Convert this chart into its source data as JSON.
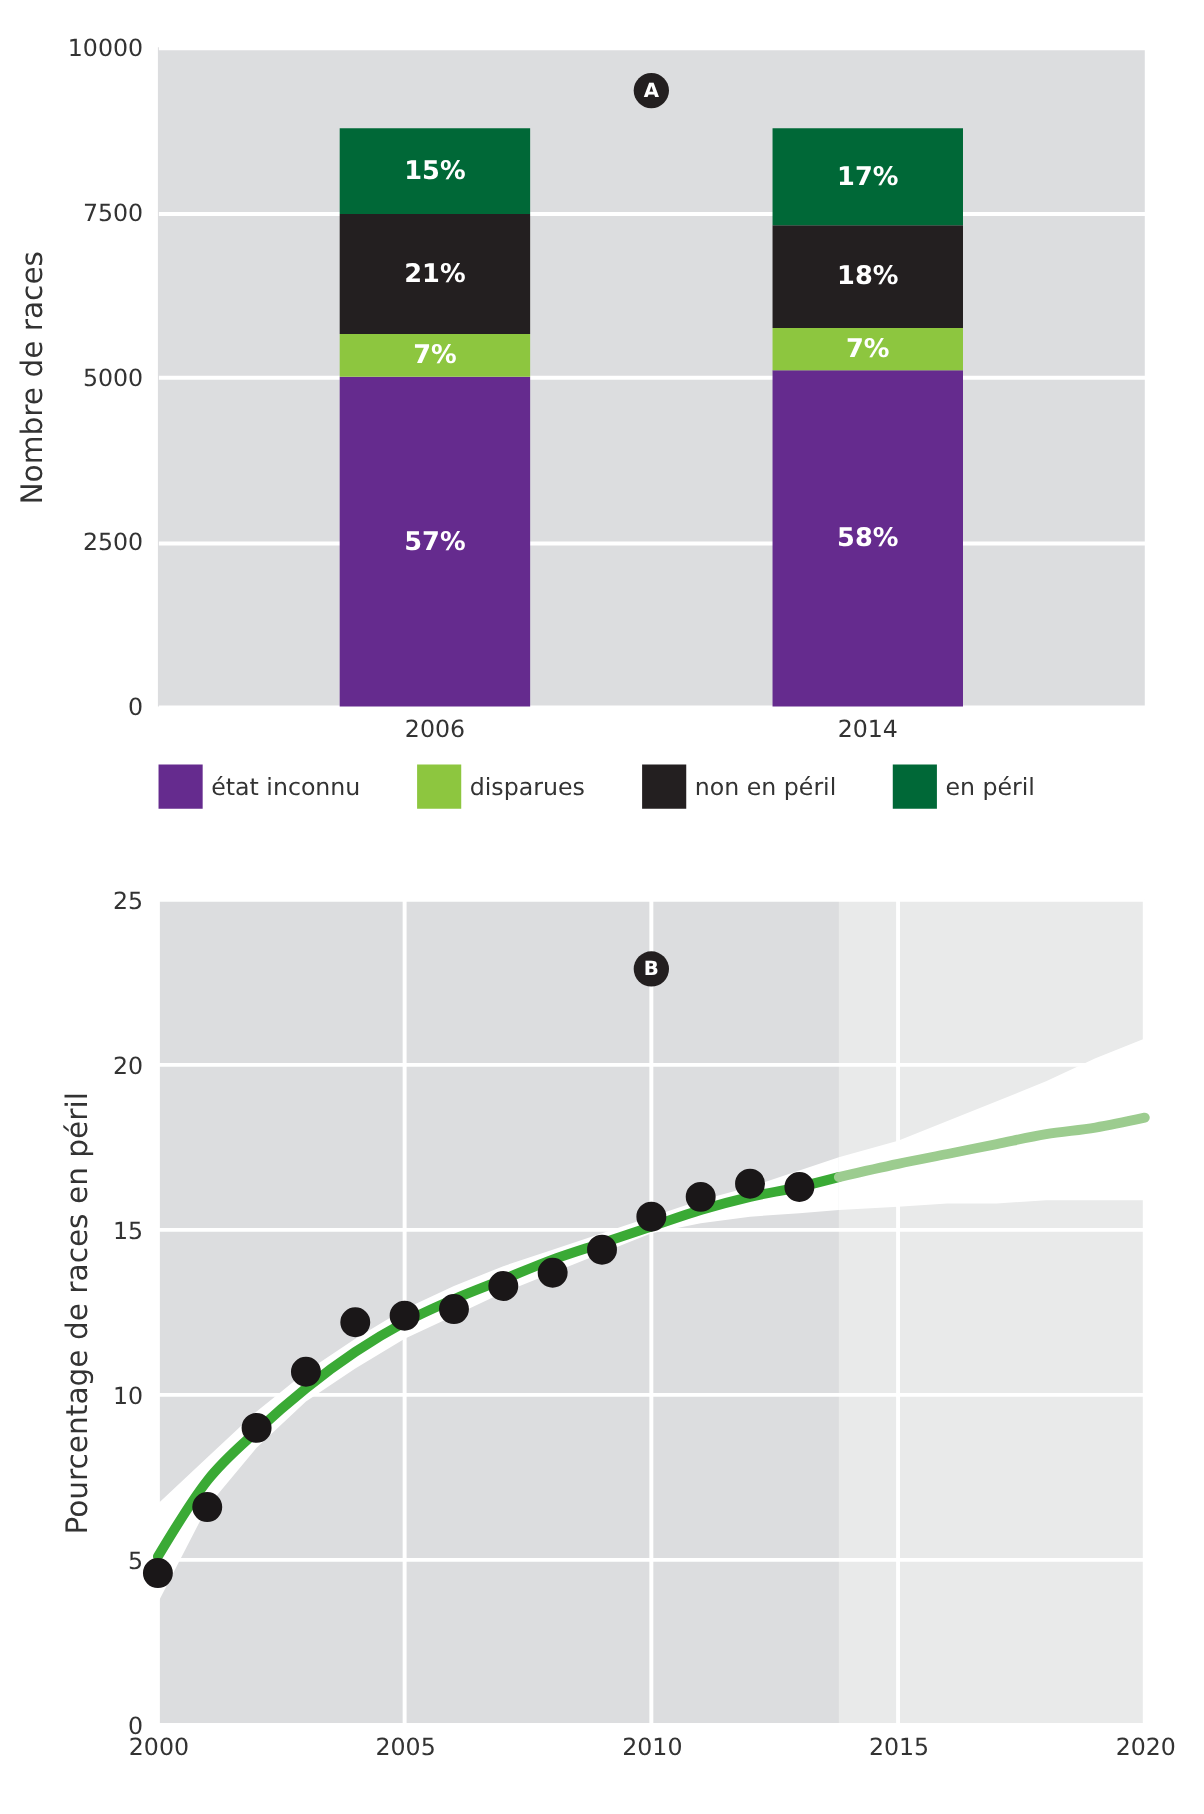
{
  "chart_data": [
    {
      "type": "bar",
      "stacked": true,
      "annotations": [
        "A",
        "57%",
        "7%",
        "21%",
        "15%",
        "58%",
        "7%",
        "18%",
        "17%"
      ],
      "ylabel": "Nombre de races",
      "categories": [
        "2006",
        "2014"
      ],
      "ylim": [
        0,
        10000
      ],
      "yticks": [
        0,
        2500,
        5000,
        7500,
        10000
      ],
      "grid": "y",
      "legend": "bottom",
      "series": [
        {
          "name": "état inconnu",
          "color": "#652b8e",
          "values": [
            5000,
            5100
          ]
        },
        {
          "name": "disparues",
          "color": "#8dc63f",
          "values": [
            650,
            640
          ]
        },
        {
          "name": "non en péril",
          "color": "#231f20",
          "values": [
            1820,
            1560
          ]
        },
        {
          "name": "en péril",
          "color": "#006837",
          "values": [
            1300,
            1470
          ]
        }
      ]
    },
    {
      "type": "line",
      "annotations": [
        "B"
      ],
      "ylabel": "Pourcentage de races en péril",
      "xlim": [
        2000,
        2020
      ],
      "xticks": [
        2000,
        2005,
        2010,
        2015,
        2020
      ],
      "ylim": [
        0,
        25
      ],
      "yticks": [
        0,
        5,
        10,
        15,
        20,
        25
      ],
      "grid": true,
      "legend": false,
      "bands": [
        {
          "axis": "x",
          "from": 2013.8,
          "to": 2020,
          "color": "#e9eaea"
        }
      ],
      "series": [
        {
          "type": "line",
          "color": "#3aaa35",
          "x": [
            2000,
            2001,
            2002,
            2003,
            2004,
            2005,
            2006,
            2007,
            2008,
            2009,
            2010,
            2011,
            2012,
            2013,
            2013.8
          ],
          "values": [
            5.1,
            7.4,
            8.9,
            10.2,
            11.3,
            12.2,
            12.9,
            13.5,
            14.1,
            14.6,
            15.1,
            15.6,
            16.0,
            16.3,
            16.6
          ],
          "lower": [
            3.7,
            6.6,
            8.4,
            9.8,
            10.8,
            11.7,
            12.4,
            13.1,
            13.7,
            14.3,
            14.9,
            15.2,
            15.4,
            15.5,
            15.6
          ],
          "upper": [
            6.7,
            8.1,
            9.5,
            10.7,
            11.7,
            12.6,
            13.3,
            13.9,
            14.4,
            14.9,
            15.4,
            15.9,
            16.3,
            16.8,
            17.2
          ]
        },
        {
          "type": "line",
          "color": "#9ccc8f",
          "x": [
            2013.8,
            2015,
            2016,
            2017,
            2018,
            2019,
            2020
          ],
          "values": [
            16.6,
            17.0,
            17.3,
            17.6,
            17.9,
            18.1,
            18.4
          ],
          "lower": [
            15.6,
            15.7,
            15.8,
            15.8,
            15.9,
            15.9,
            15.9
          ],
          "upper": [
            17.2,
            17.7,
            18.3,
            18.9,
            19.5,
            20.2,
            20.8
          ]
        },
        {
          "type": "scatter",
          "color": "#1a1718",
          "marker": "circle",
          "x": [
            2000,
            2001,
            2002,
            2003,
            2004,
            2005,
            2006,
            2007,
            2008,
            2009,
            2010,
            2011,
            2012,
            2013
          ],
          "values": [
            4.6,
            6.6,
            9.0,
            10.7,
            12.2,
            12.4,
            12.6,
            13.3,
            13.7,
            14.4,
            15.4,
            16.0,
            16.4,
            16.3
          ]
        }
      ]
    }
  ]
}
